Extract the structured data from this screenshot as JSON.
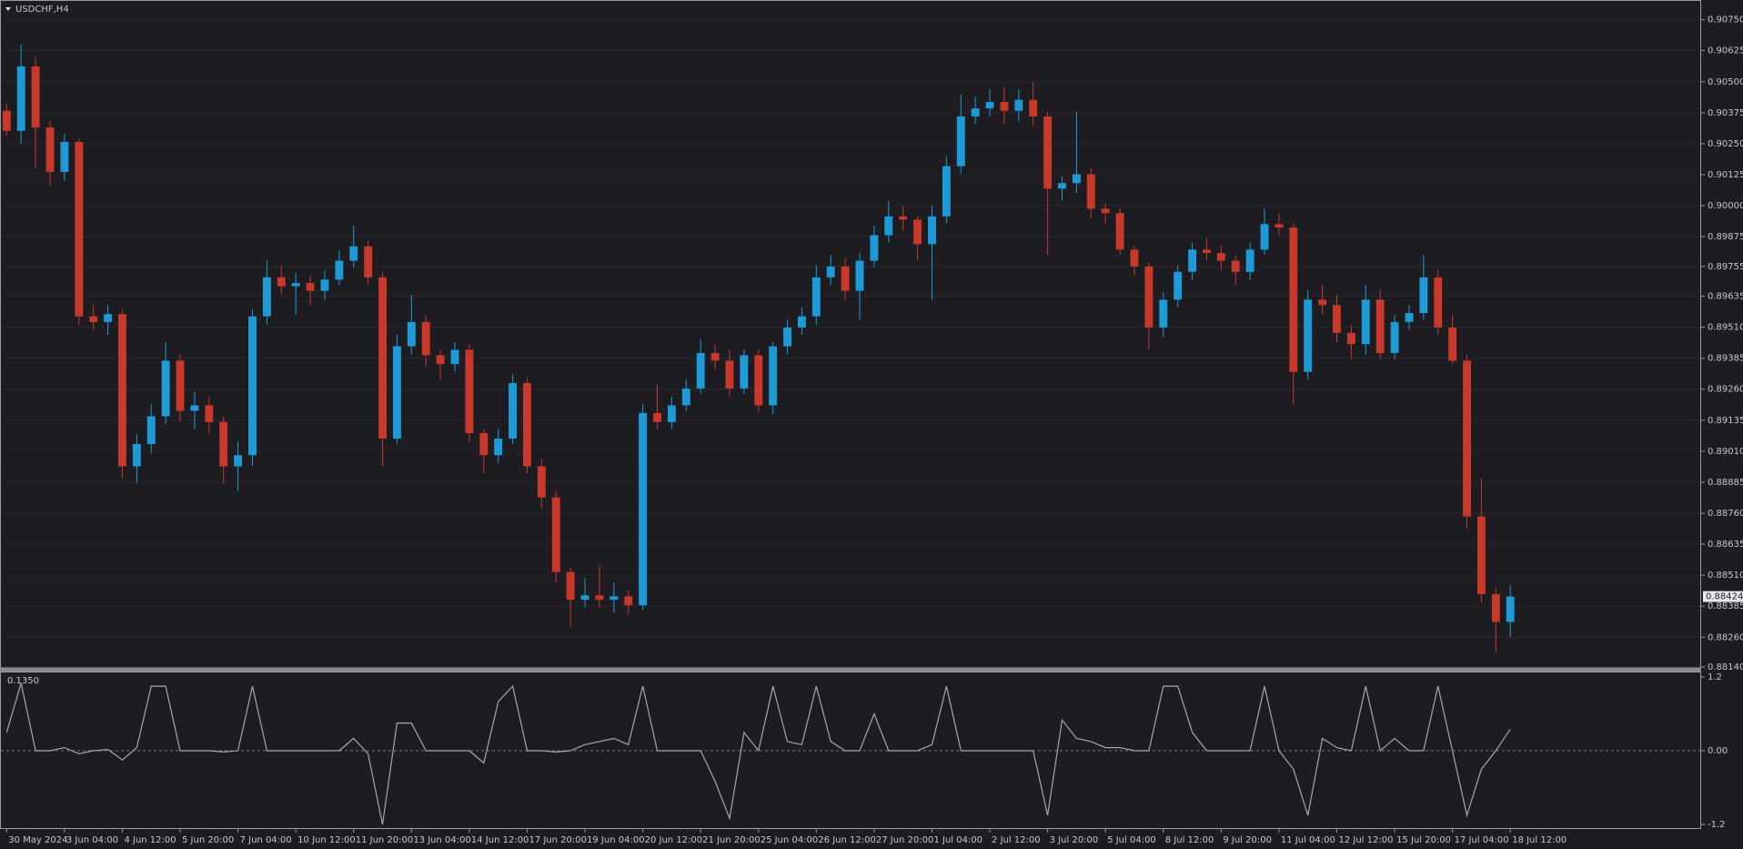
{
  "chart_data": [
    {
      "type": "candlestick",
      "title": "USDCHF,H4",
      "up_color": "#1e9bd7",
      "down_color": "#c8392b",
      "grid": true,
      "last_price": 0.88424,
      "xlim": [
        -0.46,
        117.2
      ],
      "ylim": [
        0.8814,
        0.90822
      ],
      "yticks": [
        {
          "value": 0.9075,
          "label": "0.90750"
        },
        {
          "value": 0.90625,
          "label": "0.90625"
        },
        {
          "value": 0.905,
          "label": "0.90500"
        },
        {
          "value": 0.90375,
          "label": "0.90375"
        },
        {
          "value": 0.9025,
          "label": "0.90250"
        },
        {
          "value": 0.90125,
          "label": "0.90125"
        },
        {
          "value": 0.9,
          "label": "0.90000"
        },
        {
          "value": 0.89875,
          "label": "0.89875"
        },
        0.89755,
        0.89635,
        {
          "value": 0.8951,
          "label": "0.89510"
        },
        0.89385,
        {
          "value": 0.8926,
          "label": "0.89260"
        },
        0.89135,
        {
          "value": 0.8901,
          "label": "0.89010"
        },
        0.88885,
        {
          "value": 0.8876,
          "label": "0.88760"
        },
        0.88635,
        {
          "value": 0.8851,
          "label": "0.88510"
        },
        0.88385,
        {
          "value": 0.8826,
          "label": "0.88260"
        },
        {
          "value": 0.8814,
          "label": "0.88140"
        }
      ],
      "open": [
        0.90383,
        0.90302,
        0.90562,
        0.90315,
        0.90136,
        0.90257,
        0.89554,
        0.89531,
        0.89563,
        0.88949,
        0.89039,
        0.89151,
        0.89375,
        0.89173,
        0.89195,
        0.89128,
        0.88949,
        0.88994,
        0.89554,
        0.89711,
        0.89675,
        0.89688,
        0.89657,
        0.89702,
        0.89778,
        0.89836,
        0.89711,
        0.89061,
        0.89433,
        0.89531,
        0.89397,
        0.89361,
        0.89419,
        0.89083,
        0.88994,
        0.89061,
        0.89285,
        0.88949,
        0.88824,
        0.88523,
        0.88411,
        0.88429,
        0.88411,
        0.88425,
        0.88389,
        0.89164,
        0.89128,
        0.89195,
        0.89263,
        0.89406,
        0.89375,
        0.89263,
        0.89397,
        0.89195,
        0.89433,
        0.89509,
        0.89554,
        0.89711,
        0.89755,
        0.89657,
        0.89778,
        0.89881,
        0.89957,
        0.89944,
        0.89845,
        0.89957,
        0.90159,
        0.9036,
        0.90392,
        0.90418,
        0.90383,
        0.90427,
        0.9036,
        0.90069,
        0.90091,
        0.90127,
        0.89988,
        0.8997,
        0.89823,
        0.89755,
        0.89509,
        0.89621,
        0.89733,
        0.89823,
        0.89809,
        0.89778,
        0.89733,
        0.89823,
        0.89926,
        0.89912,
        0.8933,
        0.89621,
        0.89599,
        0.89487,
        0.89442,
        0.89621,
        0.89406,
        0.89531,
        0.89567,
        0.89711,
        0.89509,
        0.89375,
        0.88747,
        0.88434,
        0.88322
      ],
      "high": [
        0.9041,
        0.9065,
        0.906,
        0.9034,
        0.9029,
        0.9027,
        0.896,
        0.896,
        0.8958,
        0.8908,
        0.892,
        0.8945,
        0.894,
        0.8925,
        0.8923,
        0.8915,
        0.8905,
        0.8958,
        0.8978,
        0.8976,
        0.8973,
        0.8972,
        0.8974,
        0.8982,
        0.8992,
        0.8986,
        0.8973,
        0.8948,
        0.8964,
        0.8956,
        0.8942,
        0.8945,
        0.8944,
        0.891,
        0.891,
        0.8932,
        0.8931,
        0.8898,
        0.8885,
        0.8854,
        0.885,
        0.8855,
        0.8848,
        0.8845,
        0.892,
        0.8928,
        0.8923,
        0.893,
        0.8946,
        0.8944,
        0.8942,
        0.8942,
        0.8942,
        0.8945,
        0.8954,
        0.8959,
        0.8976,
        0.898,
        0.8979,
        0.8981,
        0.8992,
        0.9002,
        0.9,
        0.8996,
        0.9,
        0.902,
        0.9045,
        0.9044,
        0.9047,
        0.9048,
        0.9047,
        0.905,
        0.9038,
        0.9012,
        0.9038,
        0.9015,
        0.9001,
        0.8999,
        0.8984,
        0.8977,
        0.8965,
        0.8976,
        0.8985,
        0.8987,
        0.8984,
        0.898,
        0.8985,
        0.8999,
        0.8997,
        0.8993,
        0.8966,
        0.8968,
        0.8964,
        0.8952,
        0.8968,
        0.8966,
        0.8956,
        0.896,
        0.898,
        0.8974,
        0.8956,
        0.894,
        0.889,
        0.8846,
        0.8847
      ],
      "low": [
        0.9028,
        0.9025,
        0.9015,
        0.9008,
        0.901,
        0.8952,
        0.895,
        0.8948,
        0.889,
        0.8888,
        0.89,
        0.8912,
        0.8913,
        0.891,
        0.8908,
        0.8888,
        0.8885,
        0.8895,
        0.8952,
        0.8964,
        0.8956,
        0.896,
        0.8962,
        0.8968,
        0.8975,
        0.8968,
        0.8895,
        0.8904,
        0.894,
        0.8935,
        0.893,
        0.8933,
        0.8905,
        0.8892,
        0.8896,
        0.8904,
        0.8892,
        0.8878,
        0.8848,
        0.883,
        0.8838,
        0.8838,
        0.8836,
        0.8835,
        0.8837,
        0.891,
        0.891,
        0.8917,
        0.8924,
        0.8934,
        0.8923,
        0.8924,
        0.8917,
        0.8916,
        0.894,
        0.8948,
        0.8952,
        0.8968,
        0.8962,
        0.8954,
        0.8975,
        0.8985,
        0.899,
        0.8978,
        0.8962,
        0.8993,
        0.9013,
        0.9033,
        0.9036,
        0.9033,
        0.9034,
        0.9032,
        0.898,
        0.9002,
        0.9005,
        0.8995,
        0.8993,
        0.898,
        0.8972,
        0.8942,
        0.8947,
        0.8959,
        0.897,
        0.8978,
        0.8974,
        0.8968,
        0.897,
        0.898,
        0.8988,
        0.892,
        0.893,
        0.8956,
        0.8945,
        0.8938,
        0.894,
        0.8938,
        0.8938,
        0.895,
        0.8954,
        0.8948,
        0.8936,
        0.887,
        0.884,
        0.882,
        0.8826
      ],
      "close": [
        0.90302,
        0.90562,
        0.90315,
        0.90136,
        0.90257,
        0.89554,
        0.89531,
        0.89563,
        0.88949,
        0.89039,
        0.89151,
        0.89375,
        0.89173,
        0.89195,
        0.89128,
        0.88949,
        0.88994,
        0.89554,
        0.89711,
        0.89675,
        0.89688,
        0.89657,
        0.89702,
        0.89778,
        0.89836,
        0.89711,
        0.89061,
        0.89433,
        0.89531,
        0.89397,
        0.89361,
        0.89419,
        0.89083,
        0.88994,
        0.89061,
        0.89285,
        0.88949,
        0.88824,
        0.88523,
        0.88411,
        0.88429,
        0.88411,
        0.88425,
        0.88389,
        0.89164,
        0.89128,
        0.89195,
        0.89263,
        0.89406,
        0.89375,
        0.89263,
        0.89397,
        0.89195,
        0.89433,
        0.89509,
        0.89554,
        0.89711,
        0.89755,
        0.89657,
        0.89778,
        0.89881,
        0.89957,
        0.89944,
        0.89845,
        0.89957,
        0.90159,
        0.9036,
        0.90392,
        0.90418,
        0.90383,
        0.90427,
        0.9036,
        0.90069,
        0.90091,
        0.90127,
        0.89988,
        0.8997,
        0.89823,
        0.89755,
        0.89509,
        0.89621,
        0.89733,
        0.89823,
        0.89809,
        0.89778,
        0.89733,
        0.89823,
        0.89926,
        0.89912,
        0.8933,
        0.89621,
        0.89599,
        0.89487,
        0.89442,
        0.89621,
        0.89406,
        0.89531,
        0.89567,
        0.89711,
        0.89509,
        0.89375,
        0.88747,
        0.88434,
        0.88322,
        0.88424
      ]
    },
    {
      "type": "line",
      "title": "0.1350",
      "color": "#a8a8a8",
      "xlim": [
        -0.46,
        117.2
      ],
      "ylim": [
        -1.2,
        1.2
      ],
      "yticks": [
        1.2,
        {
          "value": 0,
          "label": "0.00"
        },
        -1.2
      ],
      "xticks": [
        {
          "value": 0,
          "label": "30 May 2024"
        },
        {
          "value": 4,
          "label": "3 Jun 04:00"
        },
        {
          "value": 8,
          "label": "4 Jun 12:00"
        },
        {
          "value": 12,
          "label": "5 Jun 20:00"
        },
        {
          "value": 16,
          "label": "7 Jun 04:00"
        },
        {
          "value": 20,
          "label": "10 Jun 12:00"
        },
        {
          "value": 24,
          "label": "11 Jun 20:00"
        },
        {
          "value": 28,
          "label": "13 Jun 04:00"
        },
        {
          "value": 32,
          "label": "14 Jun 12:00"
        },
        {
          "value": 36,
          "label": "17 Jun 20:00"
        },
        {
          "value": 40,
          "label": "19 Jun 04:00"
        },
        {
          "value": 44,
          "label": "20 Jun 12:00"
        },
        {
          "value": 48,
          "label": "21 Jun 20:00"
        },
        {
          "value": 52,
          "label": "25 Jun 04:00"
        },
        {
          "value": 56,
          "label": "26 Jun 12:00"
        },
        {
          "value": 60,
          "label": "27 Jun 20:00"
        },
        {
          "value": 64,
          "label": "1 Jul 04:00"
        },
        {
          "value": 68,
          "label": "2 Jul 12:00"
        },
        {
          "value": 72,
          "label": "3 Jul 20:00"
        },
        {
          "value": 76,
          "label": "5 Jul 04:00"
        },
        {
          "value": 80,
          "label": "8 Jul 12:00"
        },
        {
          "value": 84,
          "label": "9 Jul 20:00"
        },
        {
          "value": 88,
          "label": "11 Jul 04:00"
        },
        {
          "value": 92,
          "label": "12 Jul 12:00"
        },
        {
          "value": 96,
          "label": "15 Jul 20:00"
        },
        {
          "value": 100,
          "label": "17 Jul 04:00"
        },
        {
          "value": 104,
          "label": "18 Jul 12:00"
        }
      ],
      "values": [
        0.3,
        1.1,
        0,
        0,
        0.05,
        -0.05,
        0,
        0.02,
        -0.15,
        0.05,
        1.05,
        1.05,
        0,
        0,
        0,
        -0.02,
        0,
        1.05,
        0,
        0,
        0,
        0,
        0,
        0,
        0.2,
        -0.05,
        -1.2,
        0.45,
        0.45,
        0,
        0,
        0,
        0,
        -0.2,
        0.8,
        1.05,
        0,
        0,
        -0.02,
        0,
        0.1,
        0.15,
        0.2,
        0.1,
        1.05,
        0,
        0,
        0,
        0,
        -0.5,
        -1.1,
        0.3,
        0,
        1.05,
        0.15,
        0.1,
        1.05,
        0.15,
        0,
        0,
        0.6,
        0,
        0,
        0,
        0.1,
        1.05,
        0,
        0,
        0,
        0,
        0,
        0,
        -1.05,
        0.5,
        0.2,
        0.15,
        0.05,
        0.05,
        0,
        0,
        1.05,
        1.05,
        0.3,
        0,
        0,
        0,
        0,
        1.05,
        0,
        -0.3,
        -1.05,
        0.2,
        0.05,
        0,
        1.05,
        0,
        0.2,
        0,
        0,
        1.05,
        0,
        -1.05,
        -0.3,
        0,
        0.35
      ]
    }
  ]
}
